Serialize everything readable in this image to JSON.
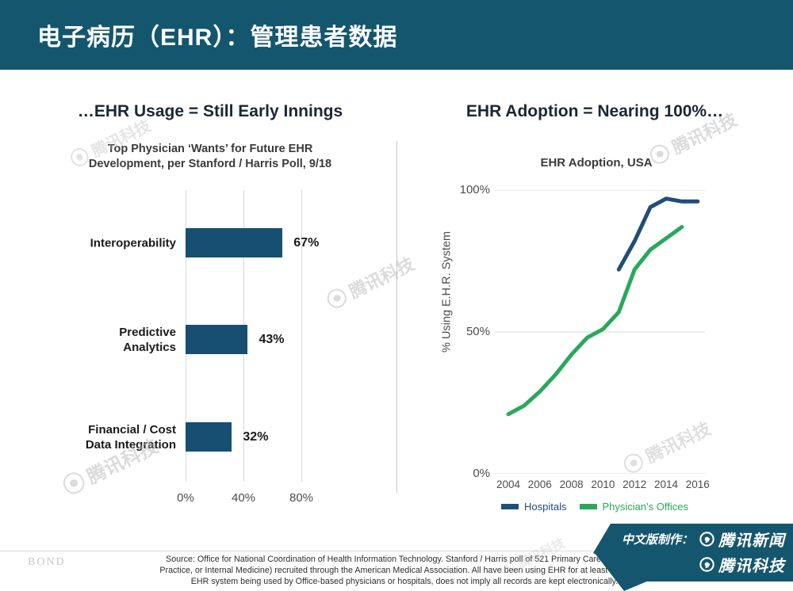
{
  "header": {
    "title": "电子病历（EHR）：管理患者数据"
  },
  "chart_data": [
    {
      "type": "bar",
      "orientation": "horizontal",
      "title": "…EHR Usage = Still Early Innings",
      "subtitle_lines": [
        "Top Physician ‘Wants’ for Future EHR",
        "Development, per Stanford / Harris Poll, 9/18"
      ],
      "categories": [
        "Interoperability",
        "Predictive\nAnalytics",
        "Financial / Cost\nData Integration"
      ],
      "values": [
        67,
        43,
        32
      ],
      "value_labels": [
        "67%",
        "43%",
        "32%"
      ],
      "xticks": [
        {
          "label": "0%",
          "value": 0
        },
        {
          "label": "40%",
          "value": 40
        },
        {
          "label": "80%",
          "value": 80
        }
      ],
      "xlim": [
        0,
        145
      ],
      "grid": true,
      "bar_color": "#174f73"
    },
    {
      "type": "line",
      "title": "EHR Adoption = Nearing 100%…",
      "subtitle": "EHR Adoption, USA",
      "ylabel": "% Using E.H.R. System",
      "ylim": [
        0,
        100
      ],
      "grid": true,
      "legend_position": "bottom",
      "yticks": [
        {
          "label": "100%",
          "value": 100
        },
        {
          "label": "50%",
          "value": 50
        },
        {
          "label": "0%",
          "value": 0
        }
      ],
      "xticks": [
        "2004",
        "2006",
        "2008",
        "2010",
        "2012",
        "2014",
        "2016"
      ],
      "series": [
        {
          "name": "Hospitals",
          "color": "#1f4e79",
          "x": [
            2011,
            2012,
            2013,
            2014,
            2015,
            2016
          ],
          "values": [
            72,
            82,
            94,
            97,
            96,
            96
          ]
        },
        {
          "name": "Physician's Offices",
          "color": "#2aa85c",
          "x": [
            2004,
            2005,
            2006,
            2007,
            2008,
            2009,
            2010,
            2011,
            2012,
            2013,
            2014,
            2015
          ],
          "values": [
            21,
            24,
            29,
            35,
            42,
            48,
            51,
            57,
            72,
            79,
            83,
            87
          ]
        }
      ]
    }
  ],
  "watermark": {
    "text": "腾讯科技"
  },
  "footer": {
    "brand": "BOND",
    "source_lines": [
      "Source: Office for National Coordination of Health Information Technology. Stanford / Harris poll of 521 Primary Care physicians",
      "Practice, or Internal Medicine) recruited through the American Medical Association.  All have been using EHR for at least 1 month N",
      "EHR system being used by Office-based physicians or hospitals, does not imply all records are kept electronically."
    ]
  },
  "banner": {
    "prefix": "中文版制作：",
    "items": [
      "腾讯新闻",
      "腾讯科技"
    ]
  },
  "colors": {
    "header_bg": "#15566f",
    "banner_bg": "#15566f",
    "bar_blue": "#174f73",
    "line_blue": "#1f4e79",
    "line_green": "#2aa85c",
    "grid_gray": "#d9d9d9"
  }
}
